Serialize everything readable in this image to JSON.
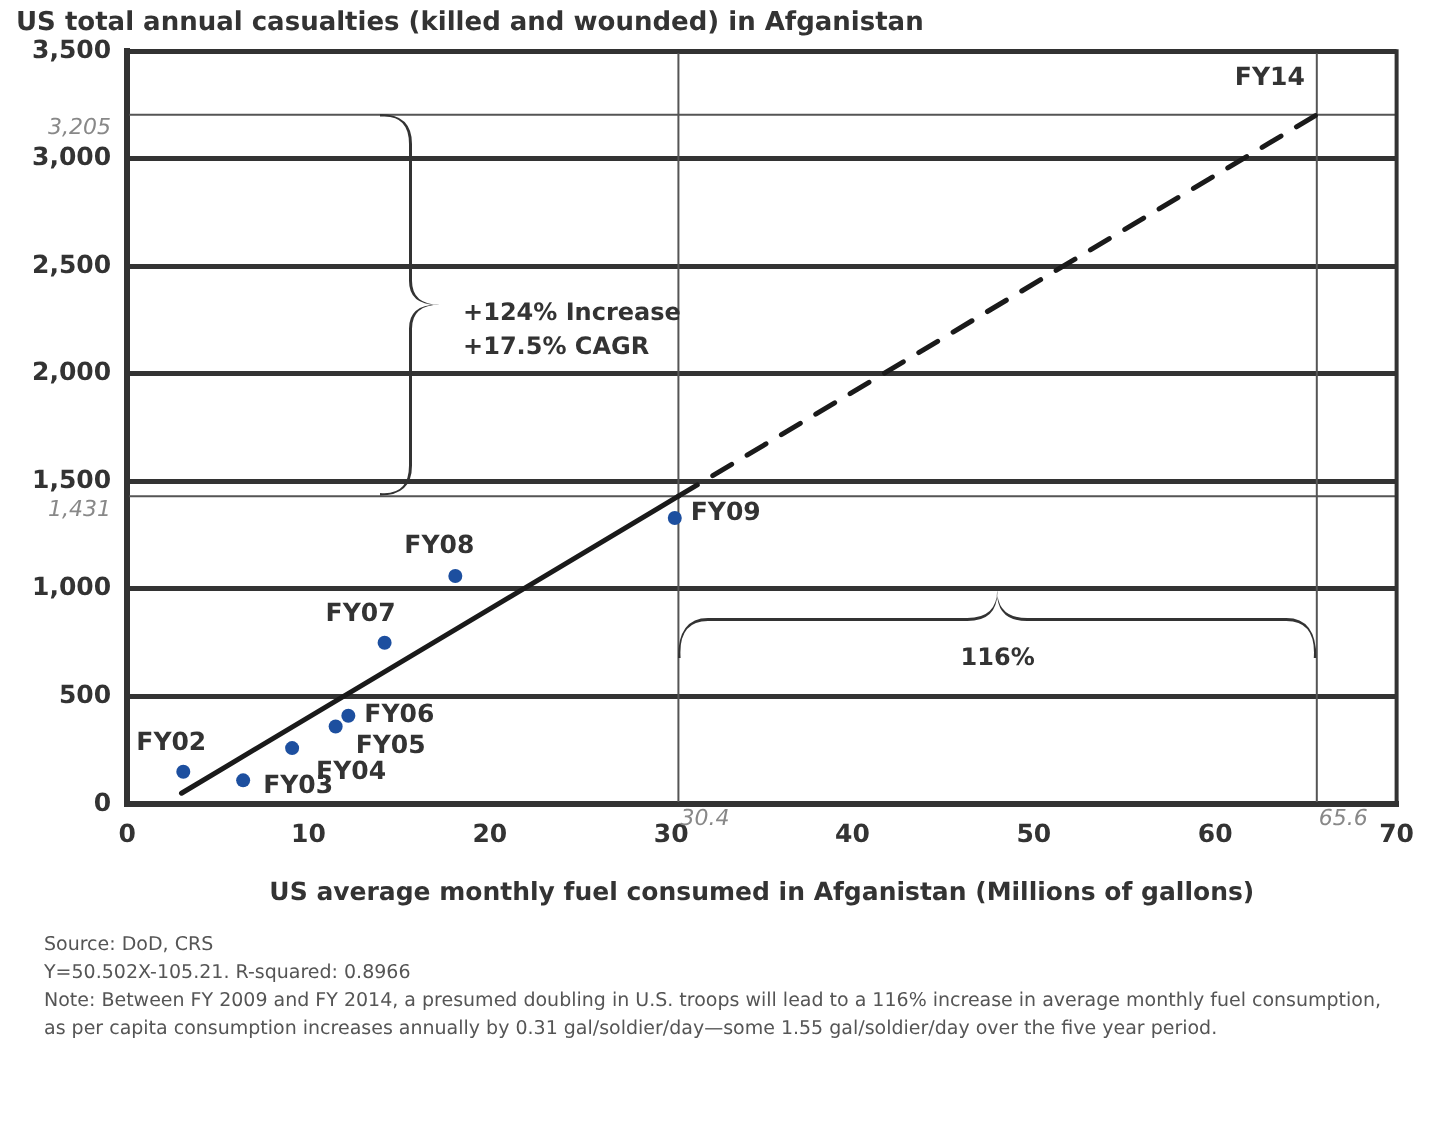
{
  "chart_data": {
    "type": "scatter",
    "title": "US total annual casualties (killed and wounded) in Afganistan",
    "xlabel": "US average monthly fuel consumed in Afganistan (Millions of gallons)",
    "series": [
      {
        "type": "line",
        "color": "#1a1a1a",
        "x": [
          3,
          30.4
        ],
        "values": [
          50,
          1431
        ],
        "marker": "none",
        "line_style": "solid"
      },
      {
        "type": "line",
        "color": "#1a1a1a",
        "x": [
          30.4,
          65.6
        ],
        "values": [
          1431,
          3205
        ],
        "marker": "none",
        "line_style": "dashed",
        "value_labels": [
          null,
          "FY14"
        ]
      },
      {
        "type": "scatter",
        "color": "#1d4f9f",
        "x": [
          3.1,
          6.4,
          9.1,
          11.5,
          12.2,
          14.2,
          18.1,
          30.2
        ],
        "values": [
          150,
          110,
          260,
          360,
          410,
          750,
          1060,
          1330
        ],
        "value_labels": [
          "FY02",
          "FY03",
          "FY04",
          "FY05",
          "FY06",
          "FY07",
          "FY08",
          "FY09"
        ]
      }
    ],
    "xlim": [
      0,
      70
    ],
    "xticks": [
      0,
      10,
      20,
      30,
      40,
      50,
      60,
      70
    ],
    "ylim": [
      0,
      3500
    ],
    "yticks": [
      0,
      500,
      {
        "value": 1000,
        "label": "1,000"
      },
      {
        "value": 1500,
        "label": "1,500"
      },
      {
        "value": 2000,
        "label": "2,000"
      },
      {
        "value": 2500,
        "label": "2,500"
      },
      {
        "value": 3000,
        "label": "3,000"
      },
      {
        "value": 3500,
        "label": "3,500"
      }
    ],
    "ref_lines": [
      {
        "axis": "y",
        "value": 1431,
        "label": "1,431",
        "color": "#555555"
      },
      {
        "axis": "y",
        "value": 3205,
        "label": "3,205",
        "color": "#555555"
      },
      {
        "axis": "x",
        "value": 30.4,
        "label": "30.4",
        "color": "#555555"
      },
      {
        "axis": "x",
        "value": 65.6,
        "label": "65.6",
        "color": "#555555"
      }
    ],
    "annotations": [
      "+124% Increase\n+17.5% CAGR",
      "116%",
      "Source: DoD, CRS",
      "Y=50.502X-105.21.  R-squared:  0.8966",
      "Note:  Between FY 2009 and FY 2014, a presumed doubling in U.S. troops will lead to a 116% increase in average monthly fuel consumption, as per capita consumption increases annually by 0.31 gal/soldier/day—some 1.55 gal/soldier/day over the five year period."
    ],
    "grid": "y",
    "marker": "circle",
    "legend": false
  }
}
